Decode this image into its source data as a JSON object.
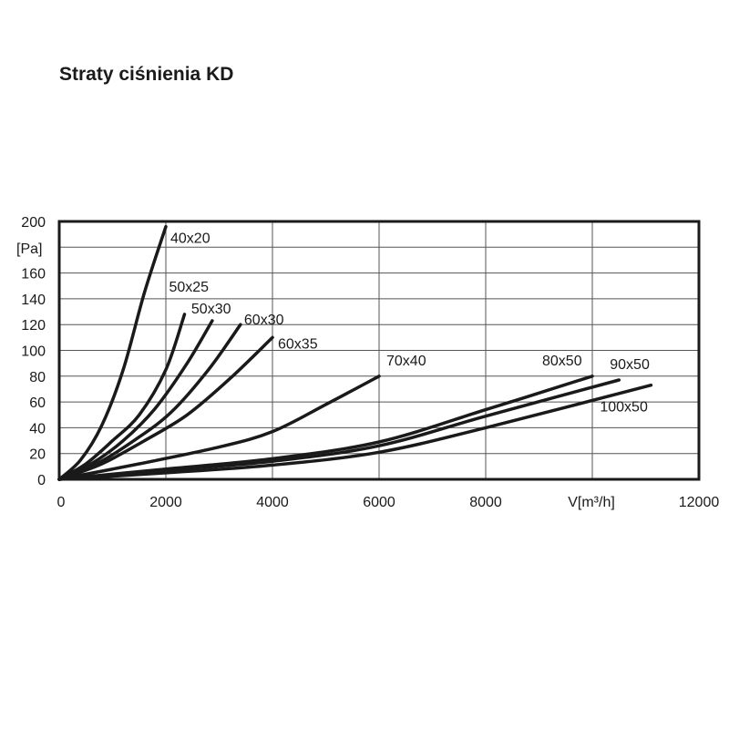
{
  "chart_data": {
    "type": "line",
    "title": "Straty ciśnienia KD",
    "xlabel": "V[m³/h]",
    "ylabel": "[Pa]",
    "xlim": [
      0,
      12000
    ],
    "ylim": [
      0,
      200
    ],
    "x_ticks": [
      "0",
      "2000",
      "4000",
      "6000",
      "8000",
      "",
      "12000"
    ],
    "y_ticks": [
      "0",
      "20",
      "40",
      "60",
      "80",
      "100",
      "120",
      "140",
      "160",
      "",
      "200"
    ],
    "grid": true,
    "legend": "none",
    "series": [
      {
        "name": "40x20",
        "x": [
          0,
          400,
          800,
          1200,
          1600,
          2000
        ],
        "y": [
          0,
          15,
          42,
          85,
          145,
          196
        ]
      },
      {
        "name": "50x25",
        "x": [
          0,
          500,
          1000,
          1500,
          2000,
          2350
        ],
        "y": [
          0,
          12,
          30,
          50,
          85,
          128
        ]
      },
      {
        "name": "50x30",
        "x": [
          0,
          600,
          1200,
          1800,
          2400,
          2870
        ],
        "y": [
          0,
          12,
          30,
          55,
          90,
          123
        ]
      },
      {
        "name": "60x30",
        "x": [
          0,
          700,
          1400,
          2100,
          2800,
          3400
        ],
        "y": [
          0,
          12,
          30,
          52,
          85,
          120
        ]
      },
      {
        "name": "60x35",
        "x": [
          0,
          800,
          1600,
          2400,
          3200,
          4000
        ],
        "y": [
          0,
          12,
          30,
          50,
          78,
          110
        ]
      },
      {
        "name": "70x40",
        "x": [
          0,
          1500,
          3000,
          4000,
          5000,
          6000
        ],
        "y": [
          0,
          12,
          25,
          37,
          58,
          80
        ]
      },
      {
        "name": "80x50",
        "x": [
          0,
          2000,
          4000,
          6000,
          8000,
          10000
        ],
        "y": [
          0,
          8,
          16,
          29,
          54,
          80
        ]
      },
      {
        "name": "90x50",
        "x": [
          0,
          2000,
          4000,
          6000,
          8000,
          10500
        ],
        "y": [
          0,
          7,
          14,
          26,
          49,
          77
        ]
      },
      {
        "name": "100x50",
        "x": [
          0,
          2000,
          4000,
          6000,
          8000,
          11100
        ],
        "y": [
          0,
          5,
          11,
          21,
          40,
          73
        ]
      }
    ]
  }
}
